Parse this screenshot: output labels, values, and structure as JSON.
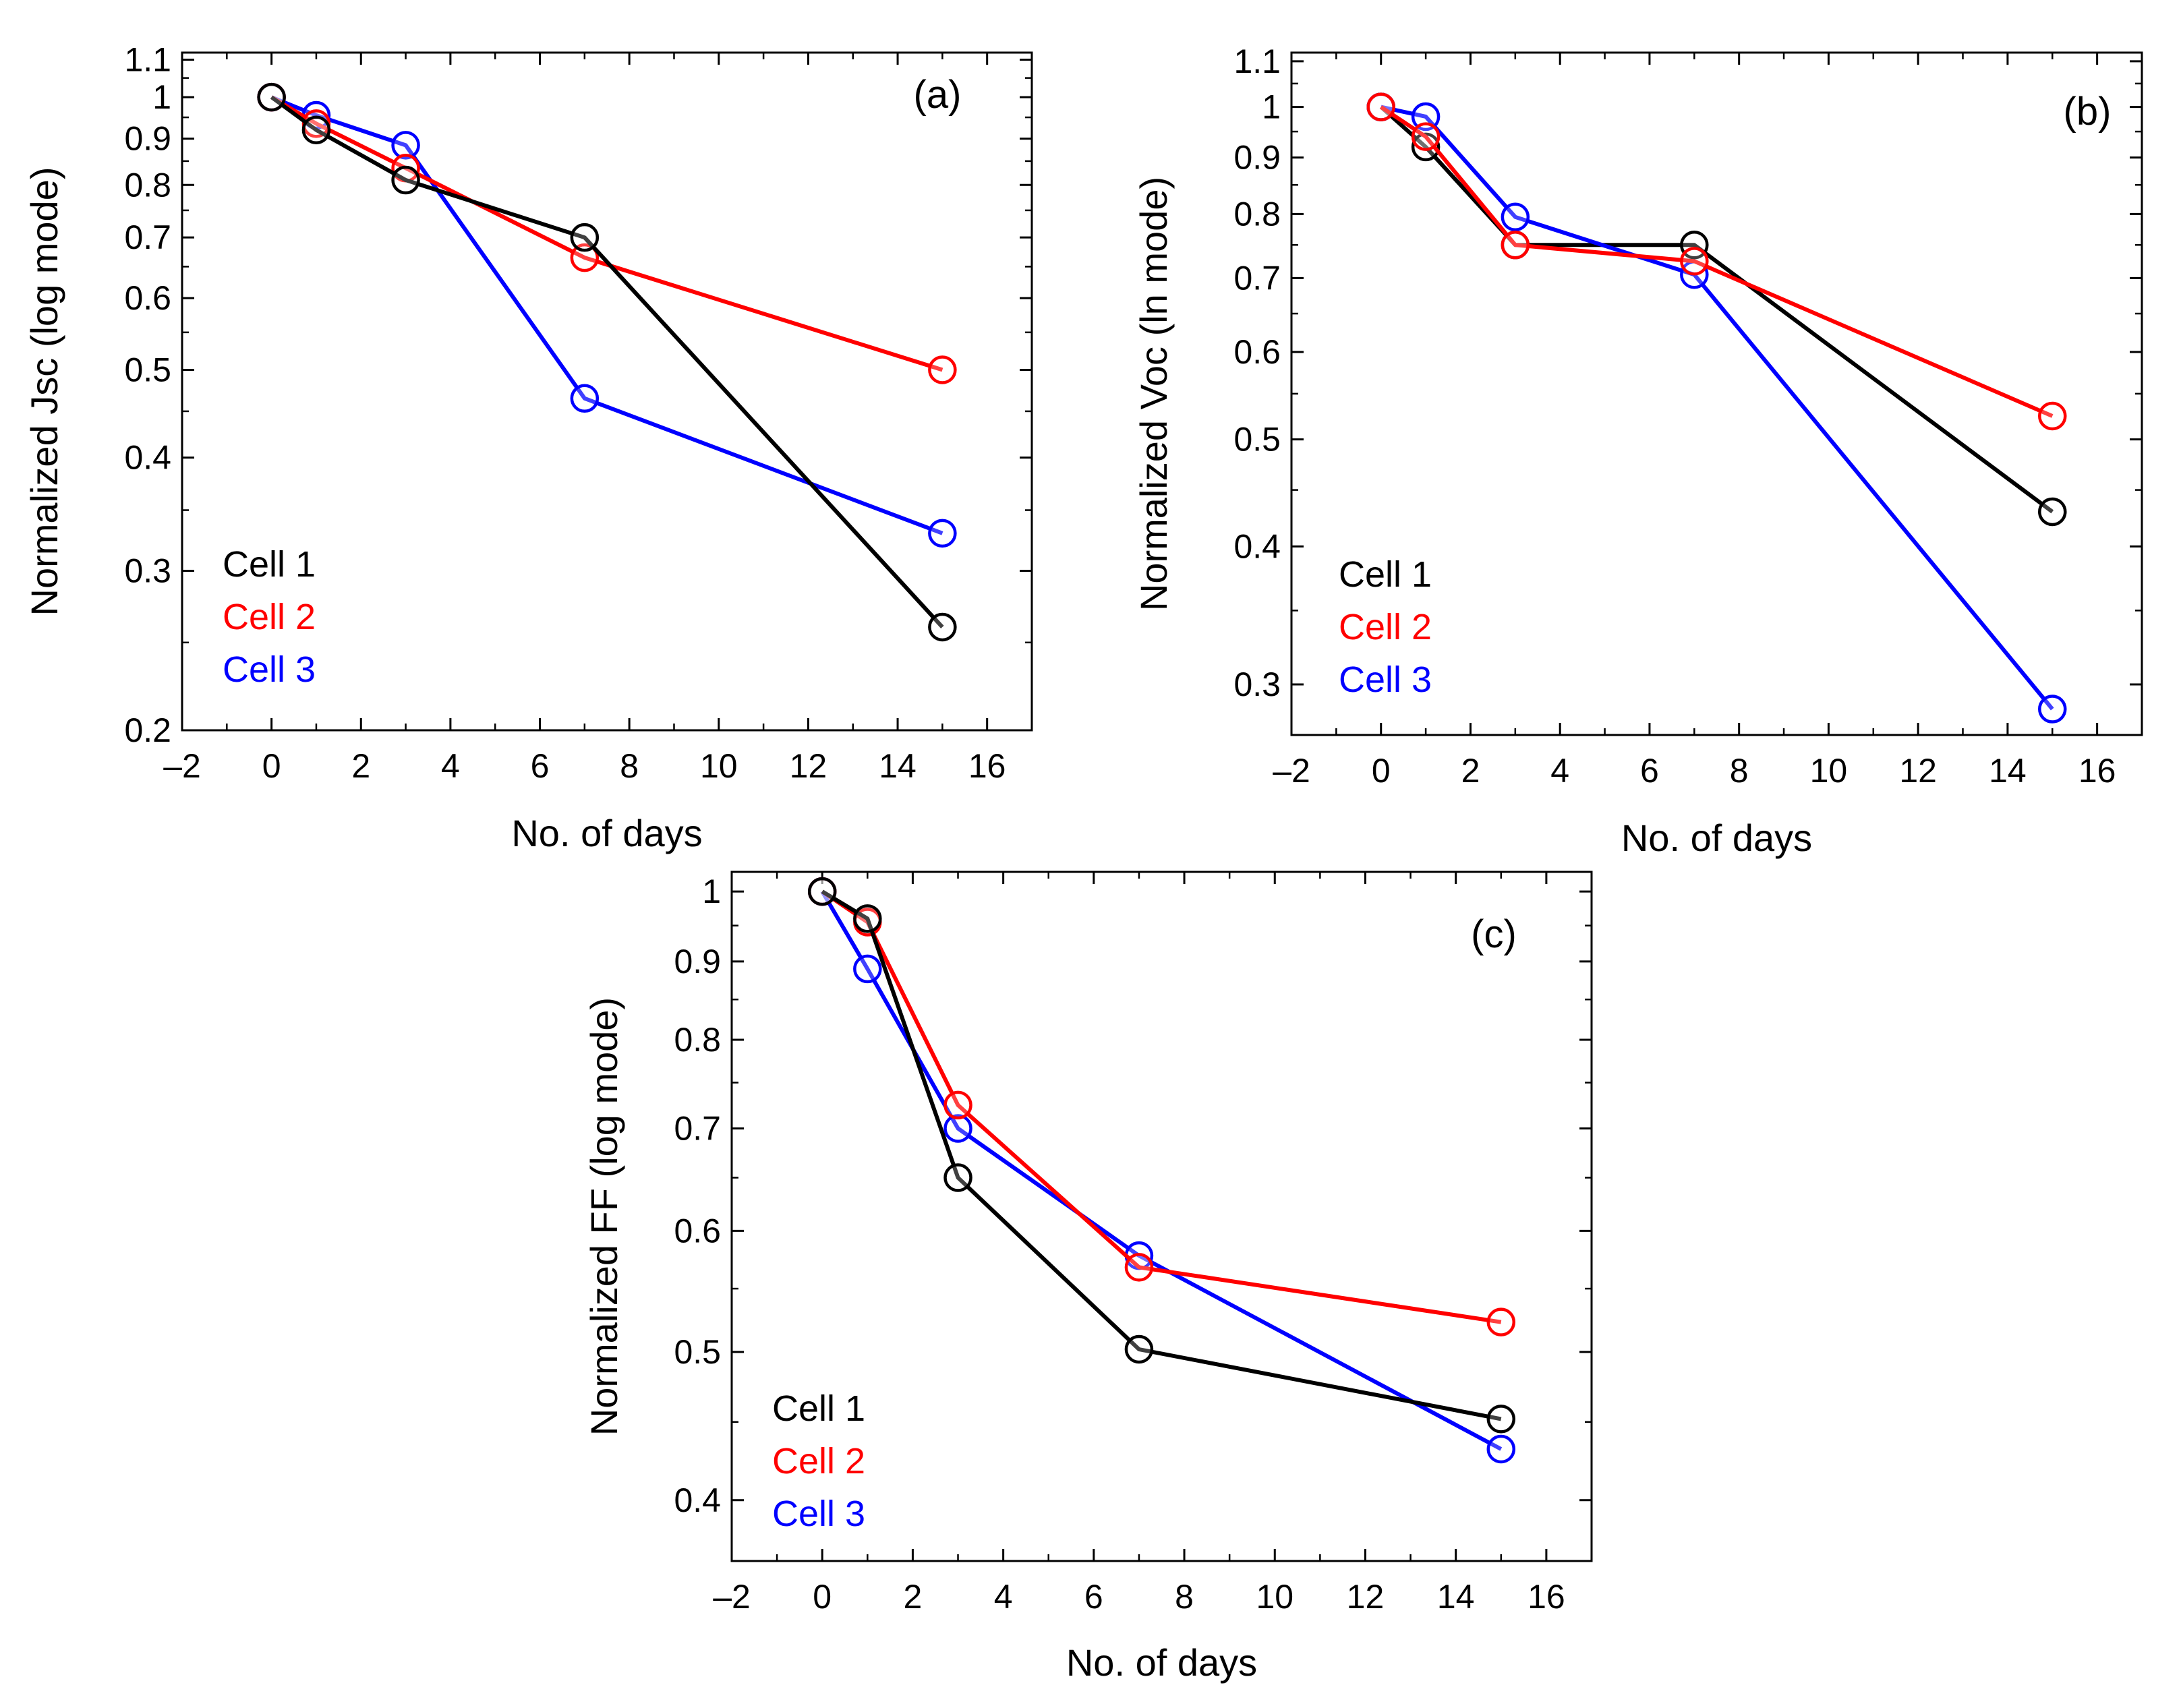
{
  "figure": {
    "caption": ""
  },
  "chart_data": [
    {
      "id": "a",
      "type": "line",
      "panel_label": "(a)",
      "title": "",
      "xlabel": "No. of days",
      "ylabel": "Normalized Jsc (log mode)",
      "xscale": "linear",
      "yscale": "log",
      "xlim": [
        -2,
        17
      ],
      "ylim": [
        0.2,
        1.12
      ],
      "xticks": [
        -2,
        0,
        2,
        4,
        6,
        8,
        10,
        12,
        14,
        16
      ],
      "xtick_labels": [
        "–2",
        "0",
        "2",
        "4",
        "6",
        "8",
        "10",
        "12",
        "14",
        "16"
      ],
      "yticks": [
        0.2,
        0.3,
        0.4,
        0.5,
        0.6,
        0.7,
        0.8,
        0.9,
        1,
        1.1
      ],
      "ytick_labels": [
        "0.2",
        "0.3",
        "0.4",
        "0.5",
        "0.6",
        "0.7",
        "0.8",
        "0.9",
        "1",
        "1.1"
      ],
      "grid": false,
      "legend_position": "bottom-left",
      "x": [
        0,
        1,
        3,
        7,
        15
      ],
      "series": [
        {
          "name": "Cell 1",
          "color": "#000000",
          "values": [
            1.0,
            0.92,
            0.81,
            0.7,
            0.26
          ]
        },
        {
          "name": "Cell 2",
          "color": "#ff0000",
          "values": [
            1.0,
            0.935,
            0.835,
            0.665,
            0.5
          ]
        },
        {
          "name": "Cell 3",
          "color": "#0000ff",
          "values": [
            1.0,
            0.955,
            0.885,
            0.465,
            0.33
          ]
        }
      ],
      "draw_order": [
        2,
        1,
        0
      ]
    },
    {
      "id": "b",
      "type": "line",
      "panel_label": "(b)",
      "title": "",
      "xlabel": "No. of days",
      "ylabel": "Normalized Voc (ln mode)",
      "xscale": "linear",
      "yscale": "log",
      "xlim": [
        -2,
        17
      ],
      "ylim": [
        0.27,
        1.12
      ],
      "xticks": [
        -2,
        0,
        2,
        4,
        6,
        8,
        10,
        12,
        14,
        16
      ],
      "xtick_labels": [
        "–2",
        "0",
        "2",
        "4",
        "6",
        "8",
        "10",
        "12",
        "14",
        "16"
      ],
      "yticks": [
        0.3,
        0.4,
        0.5,
        0.6,
        0.7,
        0.8,
        0.9,
        1,
        1.1
      ],
      "ytick_labels": [
        "0.3",
        "0.4",
        "0.5",
        "0.6",
        "0.7",
        "0.8",
        "0.9",
        "1",
        "1.1"
      ],
      "grid": false,
      "legend_position": "bottom-left",
      "x": [
        0,
        1,
        3,
        7,
        15
      ],
      "series": [
        {
          "name": "Cell 1",
          "color": "#000000",
          "values": [
            1.0,
            0.92,
            0.75,
            0.75,
            0.43
          ]
        },
        {
          "name": "Cell 2",
          "color": "#ff0000",
          "values": [
            1.0,
            0.94,
            0.75,
            0.725,
            0.525
          ]
        },
        {
          "name": "Cell 3",
          "color": "#0000ff",
          "values": [
            1.0,
            0.98,
            0.795,
            0.705,
            0.285
          ]
        }
      ],
      "draw_order": [
        0,
        2,
        1
      ]
    },
    {
      "id": "c",
      "type": "line",
      "panel_label": "(c)",
      "title": "",
      "xlabel": "No. of days",
      "ylabel": "Normalized FF (log mode)",
      "xscale": "linear",
      "yscale": "log",
      "xlim": [
        -2,
        17
      ],
      "ylim": [
        0.365,
        1.03
      ],
      "xticks": [
        -2,
        0,
        2,
        4,
        6,
        8,
        10,
        12,
        14,
        16
      ],
      "xtick_labels": [
        "–2",
        "0",
        "2",
        "4",
        "6",
        "8",
        "10",
        "12",
        "14",
        "16"
      ],
      "yticks": [
        0.4,
        0.5,
        0.6,
        0.7,
        0.8,
        0.9,
        1
      ],
      "ytick_labels": [
        "0.4",
        "0.5",
        "0.6",
        "0.7",
        "0.8",
        "0.9",
        "1"
      ],
      "grid": false,
      "legend_position": "bottom-left",
      "x": [
        0,
        1,
        3,
        7,
        15
      ],
      "series": [
        {
          "name": "Cell 1",
          "color": "#000000",
          "values": [
            1.0,
            0.96,
            0.65,
            0.502,
            0.452
          ]
        },
        {
          "name": "Cell 2",
          "color": "#ff0000",
          "values": [
            1.0,
            0.955,
            0.725,
            0.568,
            0.523
          ]
        },
        {
          "name": "Cell 3",
          "color": "#0000ff",
          "values": [
            1.0,
            0.89,
            0.7,
            0.578,
            0.432
          ]
        }
      ],
      "draw_order": [
        2,
        1,
        0
      ]
    }
  ]
}
